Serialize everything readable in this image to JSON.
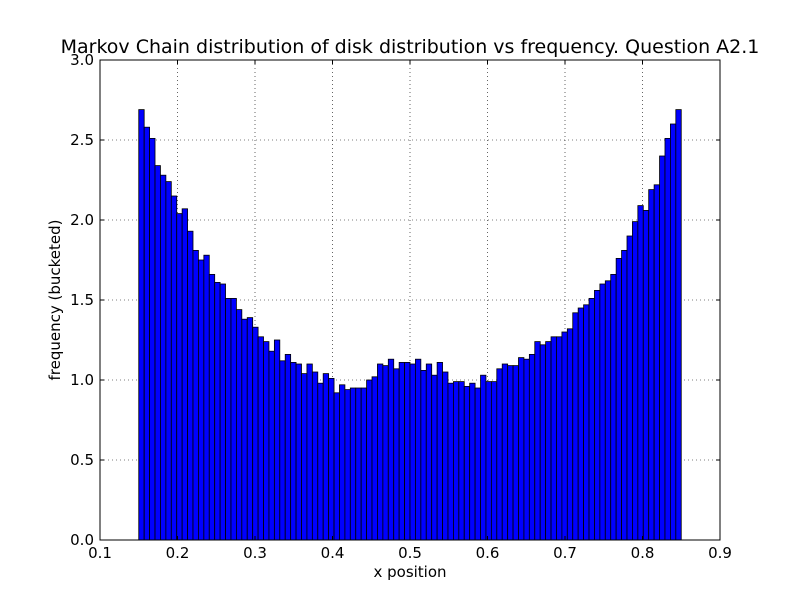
{
  "chart_data": {
    "type": "bar",
    "title": "Markov Chain distribution of disk distribution vs frequency. Question A2.1",
    "xlabel": "x position",
    "ylabel": "frequency (bucketed)",
    "xlim": [
      0.1,
      0.9
    ],
    "ylim": [
      0.0,
      3.0
    ],
    "xticks": [
      "0.1",
      "0.2",
      "0.3",
      "0.4",
      "0.5",
      "0.6",
      "0.7",
      "0.8",
      "0.9"
    ],
    "yticks": [
      "0.0",
      "0.5",
      "1.0",
      "1.5",
      "2.0",
      "2.5",
      "3.0"
    ],
    "grid": true,
    "bar_color": "#0000ff",
    "bin_start": 0.15,
    "bin_width": 0.007,
    "values": [
      2.69,
      2.58,
      2.51,
      2.34,
      2.28,
      2.24,
      2.15,
      2.04,
      2.07,
      1.93,
      1.81,
      1.75,
      1.78,
      1.66,
      1.61,
      1.6,
      1.51,
      1.51,
      1.44,
      1.38,
      1.39,
      1.33,
      1.27,
      1.24,
      1.18,
      1.25,
      1.12,
      1.16,
      1.11,
      1.1,
      1.04,
      1.1,
      1.05,
      0.98,
      1.04,
      1.01,
      0.92,
      0.97,
      0.94,
      0.95,
      0.95,
      0.95,
      1.0,
      1.02,
      1.1,
      1.09,
      1.13,
      1.07,
      1.11,
      1.11,
      1.1,
      1.13,
      1.06,
      1.1,
      1.03,
      1.11,
      1.05,
      0.98,
      0.99,
      0.99,
      0.96,
      0.98,
      0.95,
      1.03,
      0.99,
      0.99,
      1.07,
      1.1,
      1.09,
      1.09,
      1.14,
      1.13,
      1.16,
      1.24,
      1.22,
      1.24,
      1.27,
      1.27,
      1.3,
      1.32,
      1.42,
      1.45,
      1.47,
      1.51,
      1.56,
      1.6,
      1.62,
      1.66,
      1.76,
      1.81,
      1.9,
      1.99,
      2.09,
      2.06,
      2.19,
      2.22,
      2.4,
      2.51,
      2.6,
      2.69
    ]
  }
}
